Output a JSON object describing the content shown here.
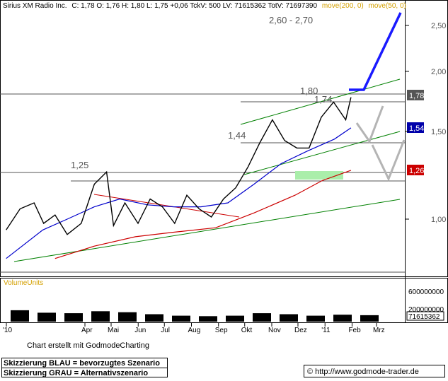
{
  "header": {
    "ticker_title": "Sirius XM Radio Inc.",
    "quote": "C: 1,78 O: 1,76 H: 1,80 L: 1,75 +0,06 TckV: 500 LV: 71615362 TotV: 71697390",
    "ma_labels": [
      "move(200, 0)",
      "move(50, 0)"
    ]
  },
  "colors": {
    "price": "#000000",
    "ma50": "#0000cc",
    "ma200": "#cc0000",
    "blue_scenario": "#1a1aff",
    "gray_scenario": "#b4b4b4",
    "trend": "#008000",
    "target_zone": "#aaeeaa",
    "ma_label_text": "#d4a000",
    "price_tag": "#555555",
    "ma50_tag": "#0000aa",
    "ma200_tag": "#cc0000"
  },
  "chart_data": [
    {
      "type": "line",
      "y_scale": "log",
      "ylim": [
        0.82,
        2.78
      ],
      "y_ticks": [
        "2,50",
        "2,00",
        "1,50",
        "1,00"
      ],
      "x_ticks": [
        "'10",
        "Apr",
        "Mai",
        "Jun",
        "Jul",
        "Aug",
        "Sep",
        "Okt",
        "Nov",
        "Dez",
        "'11",
        "Feb",
        "Mrz"
      ],
      "series": [
        {
          "name": "Sirius XM Radio Inc.",
          "type": "line",
          "x": [
            "2010-01-04",
            "2010-01-20",
            "2010-02-05",
            "2010-02-16",
            "2010-03-01",
            "2010-03-15",
            "2010-03-31",
            "2010-04-15",
            "2010-04-29",
            "2010-05-07",
            "2010-05-20",
            "2010-06-04",
            "2010-06-18",
            "2010-07-02",
            "2010-07-16",
            "2010-07-30",
            "2010-08-13",
            "2010-08-27",
            "2010-09-10",
            "2010-09-24",
            "2010-10-08",
            "2010-10-22",
            "2010-11-05",
            "2010-11-19",
            "2010-12-03",
            "2010-12-17",
            "2010-12-31",
            "2011-01-14",
            "2011-01-28",
            "2011-02-03"
          ],
          "y": [
            0.95,
            1.05,
            1.08,
            0.98,
            1.02,
            0.93,
            0.98,
            1.18,
            1.25,
            0.97,
            1.08,
            0.98,
            1.1,
            1.06,
            0.98,
            1.12,
            1.05,
            1.01,
            1.1,
            1.16,
            1.28,
            1.44,
            1.6,
            1.45,
            1.4,
            1.4,
            1.62,
            1.74,
            1.6,
            1.78
          ]
        },
        {
          "name": "move(50, 0)",
          "type": "line",
          "x": [
            "2010-01-04",
            "2010-02-15",
            "2010-03-15",
            "2010-04-15",
            "2010-05-14",
            "2010-06-15",
            "2010-07-15",
            "2010-08-15",
            "2010-09-15",
            "2010-10-15",
            "2010-11-15",
            "2010-12-15",
            "2011-01-15",
            "2011-02-03"
          ],
          "y": [
            0.83,
            0.95,
            1.0,
            1.06,
            1.1,
            1.07,
            1.06,
            1.06,
            1.08,
            1.18,
            1.3,
            1.38,
            1.46,
            1.54
          ]
        },
        {
          "name": "move(200, 0)",
          "type": "line",
          "x": [
            "2010-03-01",
            "2010-04-15",
            "2010-06-01",
            "2010-07-15",
            "2010-09-01",
            "2010-10-15",
            "2010-12-01",
            "2011-01-01",
            "2011-02-03"
          ],
          "y": [
            0.83,
            0.88,
            0.92,
            0.94,
            0.96,
            1.03,
            1.12,
            1.2,
            1.26
          ]
        }
      ],
      "annotations": [
        "1,25",
        "1,44",
        "1,74",
        "1,80",
        "2,60 - 2,70"
      ],
      "price_tags": [
        "1,78",
        "1,54",
        "1,26"
      ],
      "grid": false
    },
    {
      "type": "bar",
      "title": "VolumeUnits",
      "y_ticks": [
        "600000000",
        "200000000"
      ],
      "last_value": "71615362",
      "x": [
        "Jan",
        "Feb",
        "Mär",
        "Apr",
        "Mai",
        "Jun",
        "Jul",
        "Aug",
        "Sep",
        "Okt",
        "Nov",
        "Dez",
        "Jan",
        "Feb"
      ],
      "y": [
        230000000,
        180000000,
        170000000,
        210000000,
        190000000,
        150000000,
        120000000,
        110000000,
        120000000,
        170000000,
        150000000,
        120000000,
        140000000,
        130000000
      ]
    }
  ],
  "footer": {
    "credit": "Chart erstellt mit GodmodeCharting",
    "legend_blue": "Skizzierung BLAU = bevorzugtes Szenario",
    "legend_gray": "Skizzierung GRAU = Alternativszenario",
    "url": "© http://www.godmode-trader.de"
  }
}
